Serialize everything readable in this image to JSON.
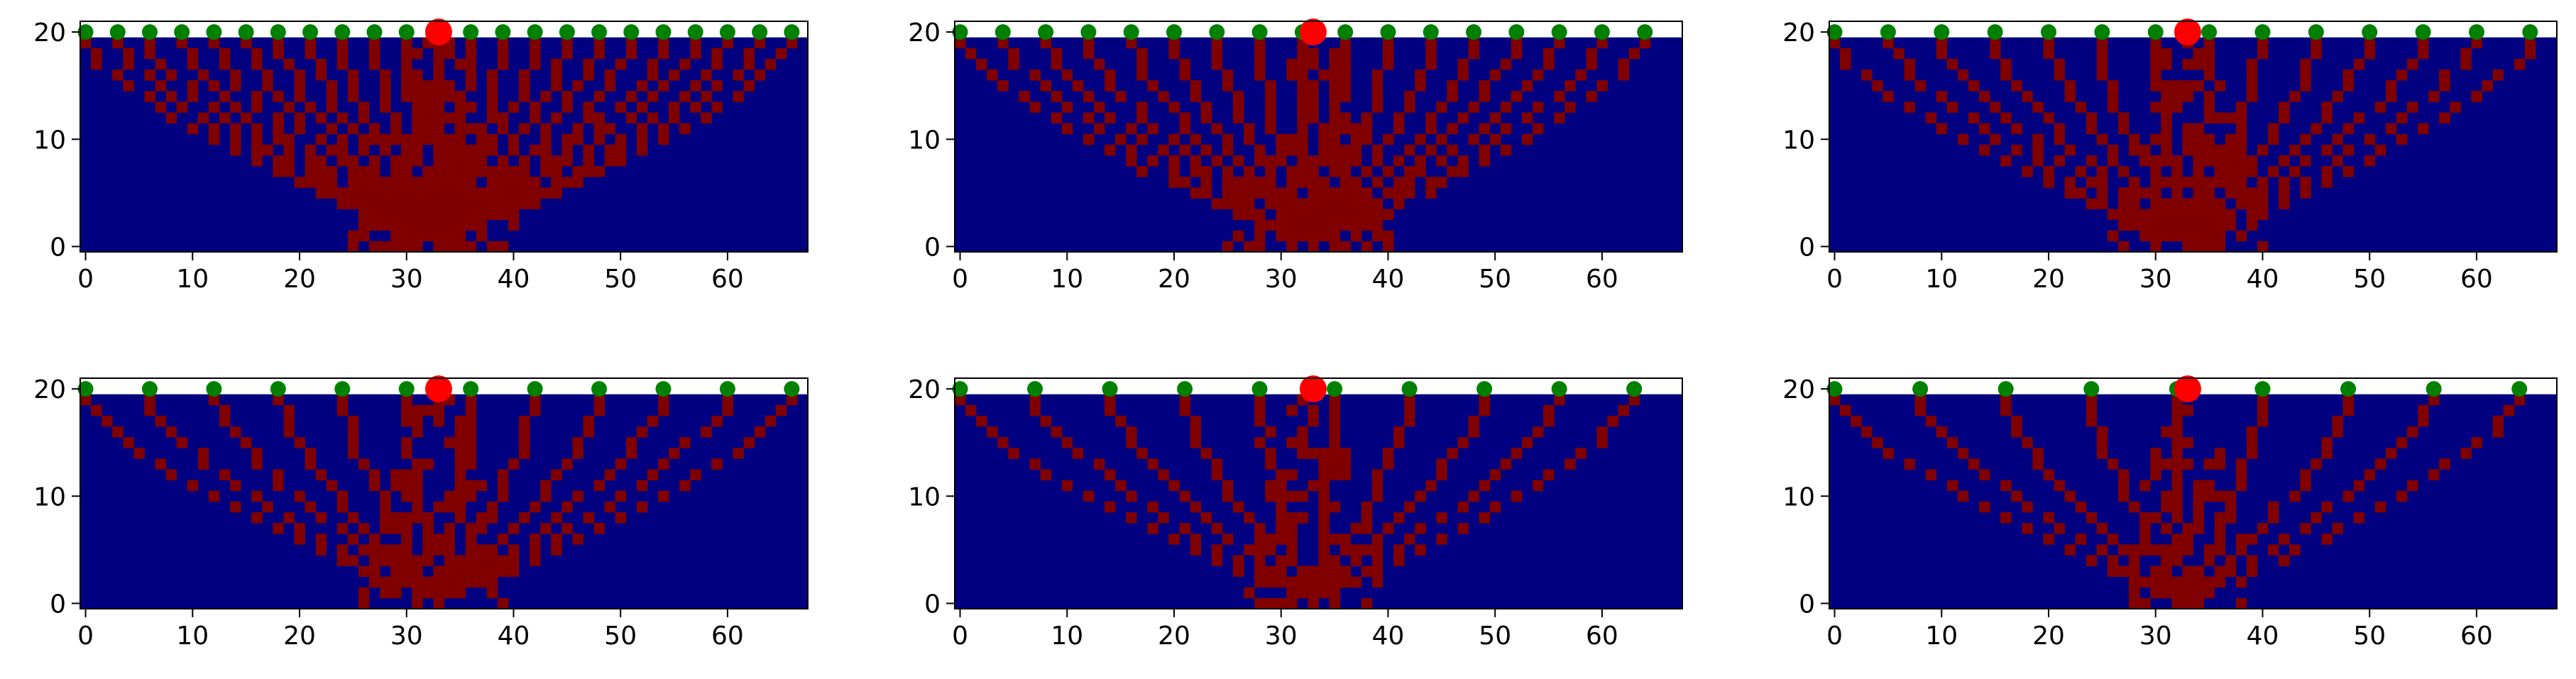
{
  "chart_data": [
    {
      "type": "heatmap",
      "title": "",
      "xlabel": "",
      "ylabel": "",
      "xlim": [
        -0.5,
        67.5
      ],
      "ylim": [
        -0.5,
        21
      ],
      "xticks": [
        0,
        10,
        20,
        30,
        40,
        50,
        60
      ],
      "yticks": [
        0,
        10,
        20
      ],
      "grid": false,
      "legend": "none",
      "colors": {
        "background": "#000080",
        "active": "#800000",
        "blank": "#ffffff",
        "source": "#ff0000",
        "receiver": "#008000"
      },
      "grid_shape": {
        "columns": 68,
        "rows": 20
      },
      "source": {
        "x": 33,
        "y": 20
      },
      "receiver_spacing": 3,
      "receivers_x": [
        0,
        3,
        6,
        9,
        12,
        15,
        18,
        21,
        24,
        27,
        30,
        33,
        36,
        39,
        42,
        45,
        48,
        51,
        54,
        57,
        60,
        63,
        66
      ]
    },
    {
      "type": "heatmap",
      "title": "",
      "xlabel": "",
      "ylabel": "",
      "xlim": [
        -0.5,
        67.5
      ],
      "ylim": [
        -0.5,
        21
      ],
      "xticks": [
        0,
        10,
        20,
        30,
        40,
        50,
        60
      ],
      "yticks": [
        0,
        10,
        20
      ],
      "grid": false,
      "legend": "none",
      "colors": {
        "background": "#000080",
        "active": "#800000",
        "blank": "#ffffff",
        "source": "#ff0000",
        "receiver": "#008000"
      },
      "grid_shape": {
        "columns": 68,
        "rows": 20
      },
      "source": {
        "x": 33,
        "y": 20
      },
      "receiver_spacing": 4,
      "receivers_x": [
        0,
        4,
        8,
        12,
        16,
        20,
        24,
        28,
        32,
        36,
        40,
        44,
        48,
        52,
        56,
        60,
        64
      ]
    },
    {
      "type": "heatmap",
      "title": "",
      "xlabel": "",
      "ylabel": "",
      "xlim": [
        -0.5,
        67.5
      ],
      "ylim": [
        -0.5,
        21
      ],
      "xticks": [
        0,
        10,
        20,
        30,
        40,
        50,
        60
      ],
      "yticks": [
        0,
        10,
        20
      ],
      "grid": false,
      "legend": "none",
      "colors": {
        "background": "#000080",
        "active": "#800000",
        "blank": "#ffffff",
        "source": "#ff0000",
        "receiver": "#008000"
      },
      "grid_shape": {
        "columns": 68,
        "rows": 20
      },
      "source": {
        "x": 33,
        "y": 20
      },
      "receiver_spacing": 5,
      "receivers_x": [
        0,
        5,
        10,
        15,
        20,
        25,
        30,
        35,
        40,
        45,
        50,
        55,
        60,
        65
      ]
    },
    {
      "type": "heatmap",
      "title": "",
      "xlabel": "",
      "ylabel": "",
      "xlim": [
        -0.5,
        67.5
      ],
      "ylim": [
        -0.5,
        21
      ],
      "xticks": [
        0,
        10,
        20,
        30,
        40,
        50,
        60
      ],
      "yticks": [
        0,
        10,
        20
      ],
      "grid": false,
      "legend": "none",
      "colors": {
        "background": "#000080",
        "active": "#800000",
        "blank": "#ffffff",
        "source": "#ff0000",
        "receiver": "#008000"
      },
      "grid_shape": {
        "columns": 68,
        "rows": 20
      },
      "source": {
        "x": 33,
        "y": 20
      },
      "receiver_spacing": 6,
      "receivers_x": [
        0,
        6,
        12,
        18,
        24,
        30,
        36,
        42,
        48,
        54,
        60,
        66
      ]
    },
    {
      "type": "heatmap",
      "title": "",
      "xlabel": "",
      "ylabel": "",
      "xlim": [
        -0.5,
        67.5
      ],
      "ylim": [
        -0.5,
        21
      ],
      "xticks": [
        0,
        10,
        20,
        30,
        40,
        50,
        60
      ],
      "yticks": [
        0,
        10,
        20
      ],
      "grid": false,
      "legend": "none",
      "colors": {
        "background": "#000080",
        "active": "#800000",
        "blank": "#ffffff",
        "source": "#ff0000",
        "receiver": "#008000"
      },
      "grid_shape": {
        "columns": 68,
        "rows": 20
      },
      "source": {
        "x": 33,
        "y": 20
      },
      "receiver_spacing": 7,
      "receivers_x": [
        0,
        7,
        14,
        21,
        28,
        35,
        42,
        49,
        56,
        63
      ]
    },
    {
      "type": "heatmap",
      "title": "",
      "xlabel": "",
      "ylabel": "",
      "xlim": [
        -0.5,
        67.5
      ],
      "ylim": [
        -0.5,
        21
      ],
      "xticks": [
        0,
        10,
        20,
        30,
        40,
        50,
        60
      ],
      "yticks": [
        0,
        10,
        20
      ],
      "grid": false,
      "legend": "none",
      "colors": {
        "background": "#000080",
        "active": "#800000",
        "blank": "#ffffff",
        "source": "#ff0000",
        "receiver": "#008000"
      },
      "grid_shape": {
        "columns": 68,
        "rows": 20
      },
      "source": {
        "x": 33,
        "y": 20
      },
      "receiver_spacing": 8,
      "receivers_x": [
        0,
        8,
        16,
        24,
        32,
        40,
        48,
        56,
        64
      ]
    }
  ]
}
